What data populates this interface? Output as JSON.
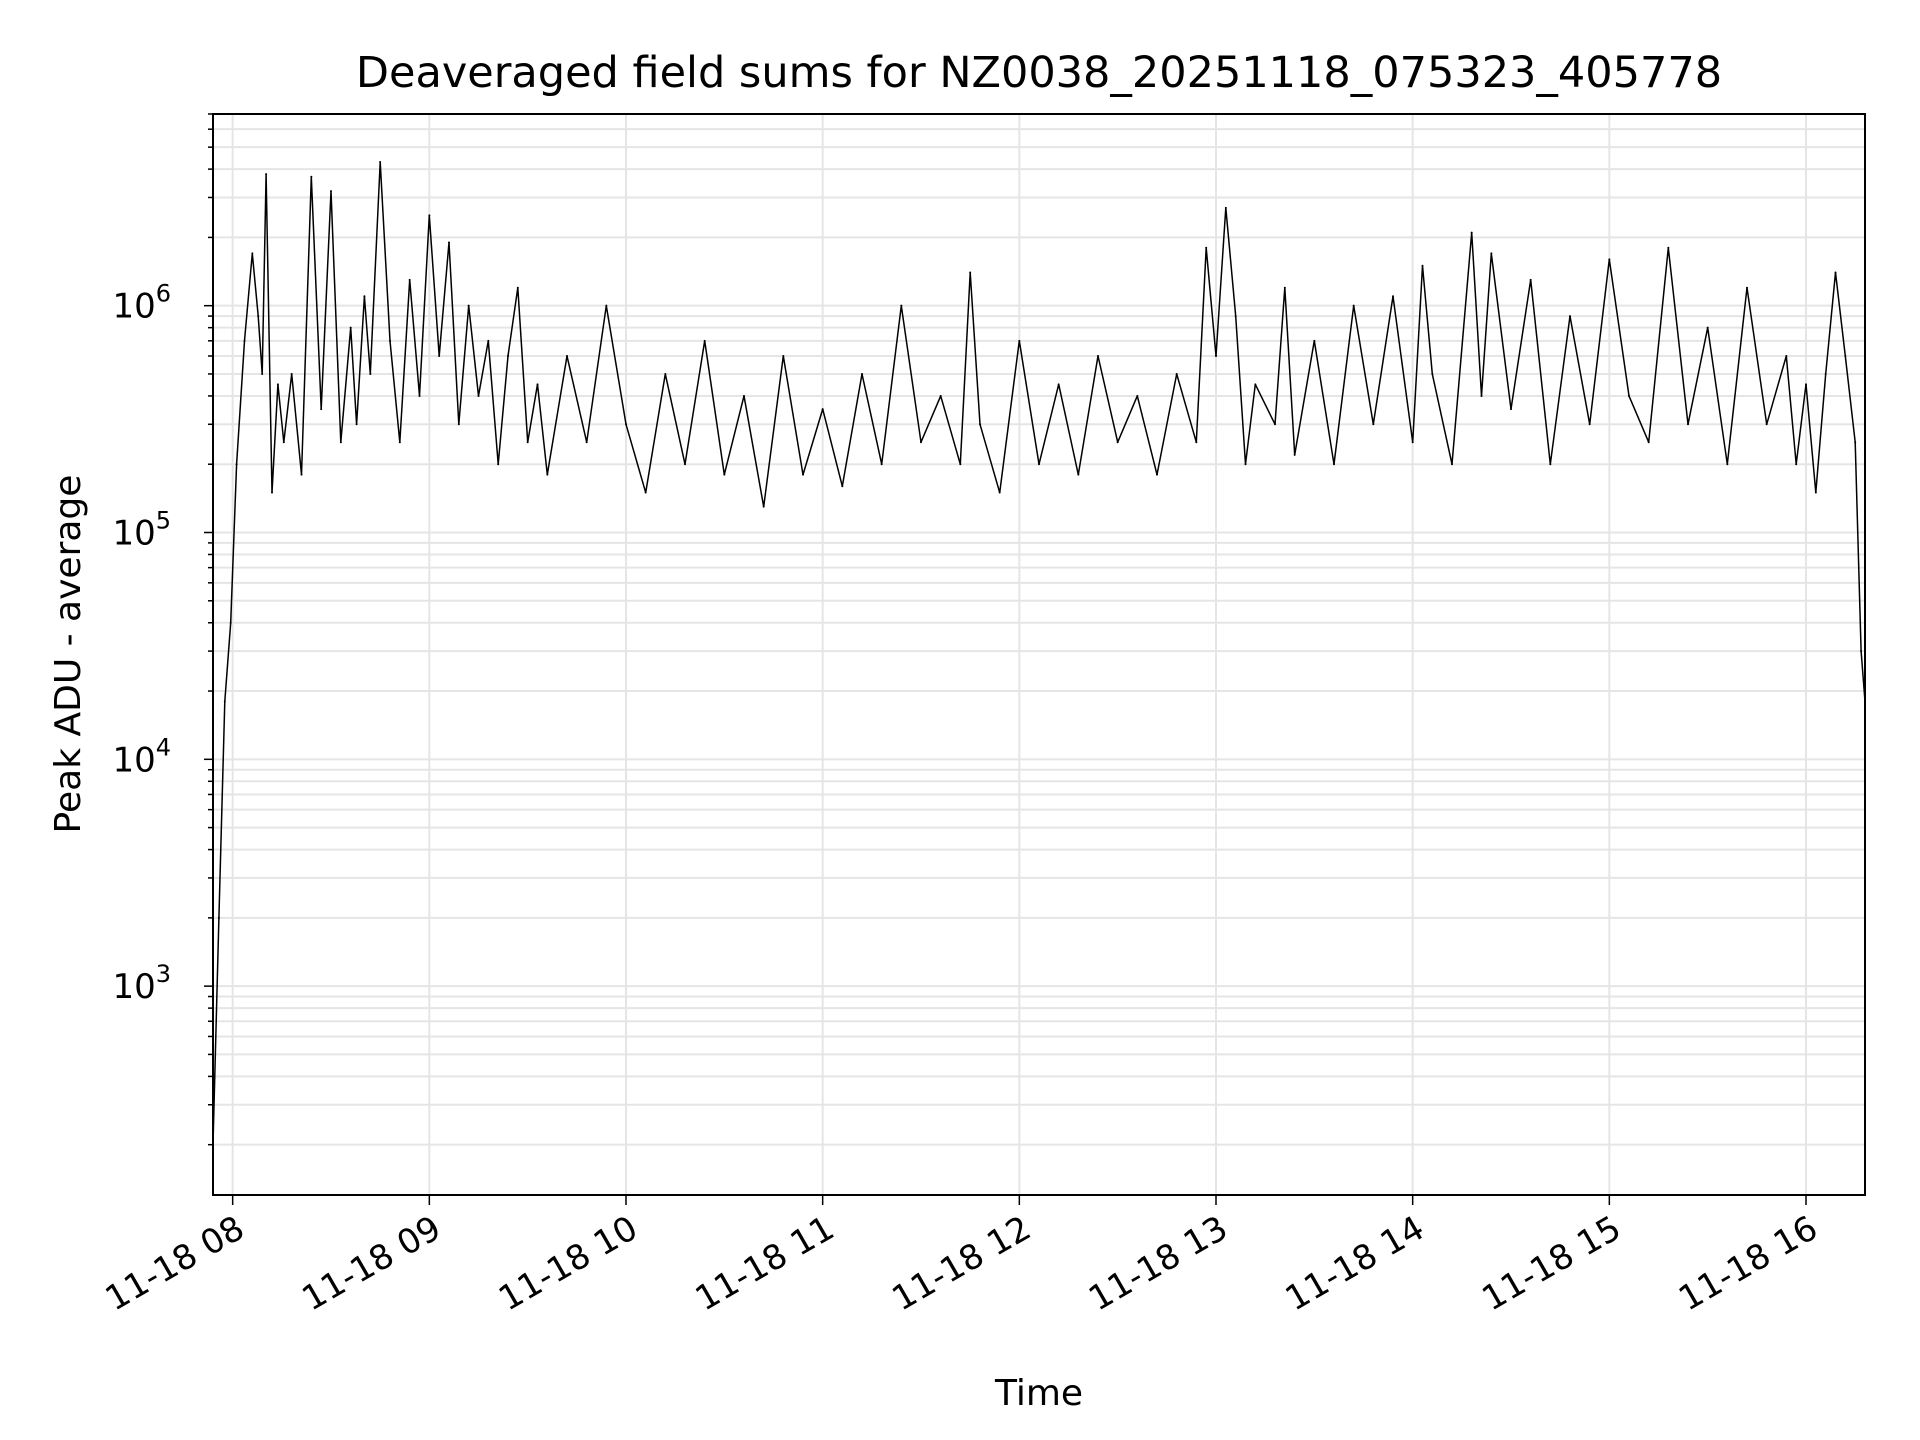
{
  "chart_data": {
    "type": "line",
    "title": "Deaveraged field sums for NZ0038_20251118_075323_405778",
    "xlabel": "Time",
    "ylabel": "Peak ADU - average",
    "yscale": "log",
    "ylim": [
      120,
      7000000
    ],
    "xlim_hours": [
      7.9,
      16.3
    ],
    "grid": true,
    "x_ticks": [
      {
        "value": 8,
        "label": "11-18 08"
      },
      {
        "value": 9,
        "label": "11-18 09"
      },
      {
        "value": 10,
        "label": "11-18 10"
      },
      {
        "value": 11,
        "label": "11-18 11"
      },
      {
        "value": 12,
        "label": "11-18 12"
      },
      {
        "value": 13,
        "label": "11-18 13"
      },
      {
        "value": 14,
        "label": "11-18 14"
      },
      {
        "value": 15,
        "label": "11-18 15"
      },
      {
        "value": 16,
        "label": "11-18 16"
      }
    ],
    "y_ticks": [
      {
        "value": 1000,
        "base": "10",
        "exp": "3"
      },
      {
        "value": 10000,
        "base": "10",
        "exp": "4"
      },
      {
        "value": 100000,
        "base": "10",
        "exp": "5"
      },
      {
        "value": 1000000,
        "base": "10",
        "exp": "6"
      }
    ],
    "line_color": "#000000",
    "grid_color": "#e5e5e5",
    "series": [
      {
        "name": "deaveraged field sum",
        "x": [
          7.9,
          7.93,
          7.96,
          7.99,
          8.02,
          8.06,
          8.1,
          8.13,
          8.15,
          8.17,
          8.2,
          8.23,
          8.26,
          8.3,
          8.35,
          8.4,
          8.45,
          8.5,
          8.55,
          8.6,
          8.63,
          8.67,
          8.7,
          8.75,
          8.8,
          8.85,
          8.9,
          8.95,
          9.0,
          9.05,
          9.1,
          9.15,
          9.2,
          9.25,
          9.3,
          9.35,
          9.4,
          9.45,
          9.5,
          9.55,
          9.6,
          9.7,
          9.8,
          9.9,
          10.0,
          10.1,
          10.2,
          10.3,
          10.4,
          10.5,
          10.6,
          10.7,
          10.8,
          10.9,
          11.0,
          11.1,
          11.2,
          11.3,
          11.4,
          11.5,
          11.6,
          11.7,
          11.75,
          11.8,
          11.9,
          12.0,
          12.1,
          12.2,
          12.3,
          12.4,
          12.5,
          12.6,
          12.7,
          12.8,
          12.9,
          12.95,
          13.0,
          13.05,
          13.1,
          13.15,
          13.2,
          13.3,
          13.35,
          13.4,
          13.5,
          13.6,
          13.7,
          13.8,
          13.9,
          14.0,
          14.05,
          14.1,
          14.2,
          14.3,
          14.35,
          14.4,
          14.5,
          14.6,
          14.7,
          14.8,
          14.9,
          15.0,
          15.1,
          15.2,
          15.3,
          15.4,
          15.5,
          15.6,
          15.7,
          15.8,
          15.9,
          15.95,
          16.0,
          16.05,
          16.1,
          16.15,
          16.2,
          16.25,
          16.28,
          16.3
        ],
        "y": [
          200,
          2000,
          18000,
          40000,
          200000,
          700000,
          1700000,
          900000,
          500000,
          3800000,
          150000,
          450000,
          250000,
          500000,
          180000,
          3700000,
          350000,
          3200000,
          250000,
          800000,
          300000,
          1100000,
          500000,
          4300000,
          700000,
          250000,
          1300000,
          400000,
          2500000,
          600000,
          1900000,
          300000,
          1000000,
          400000,
          700000,
          200000,
          600000,
          1200000,
          250000,
          450000,
          180000,
          600000,
          250000,
          1000000,
          300000,
          150000,
          500000,
          200000,
          700000,
          180000,
          400000,
          130000,
          600000,
          180000,
          350000,
          160000,
          500000,
          200000,
          1000000,
          250000,
          400000,
          200000,
          1400000,
          300000,
          150000,
          700000,
          200000,
          450000,
          180000,
          600000,
          250000,
          400000,
          180000,
          500000,
          250000,
          1800000,
          600000,
          2700000,
          900000,
          200000,
          450000,
          300000,
          1200000,
          220000,
          700000,
          200000,
          1000000,
          300000,
          1100000,
          250000,
          1500000,
          500000,
          200000,
          2100000,
          400000,
          1700000,
          350000,
          1300000,
          200000,
          900000,
          300000,
          1600000,
          400000,
          250000,
          1800000,
          300000,
          800000,
          200000,
          1200000,
          300000,
          600000,
          200000,
          450000,
          150000,
          500000,
          1400000,
          600000,
          250000,
          30000,
          18000
        ]
      }
    ]
  }
}
